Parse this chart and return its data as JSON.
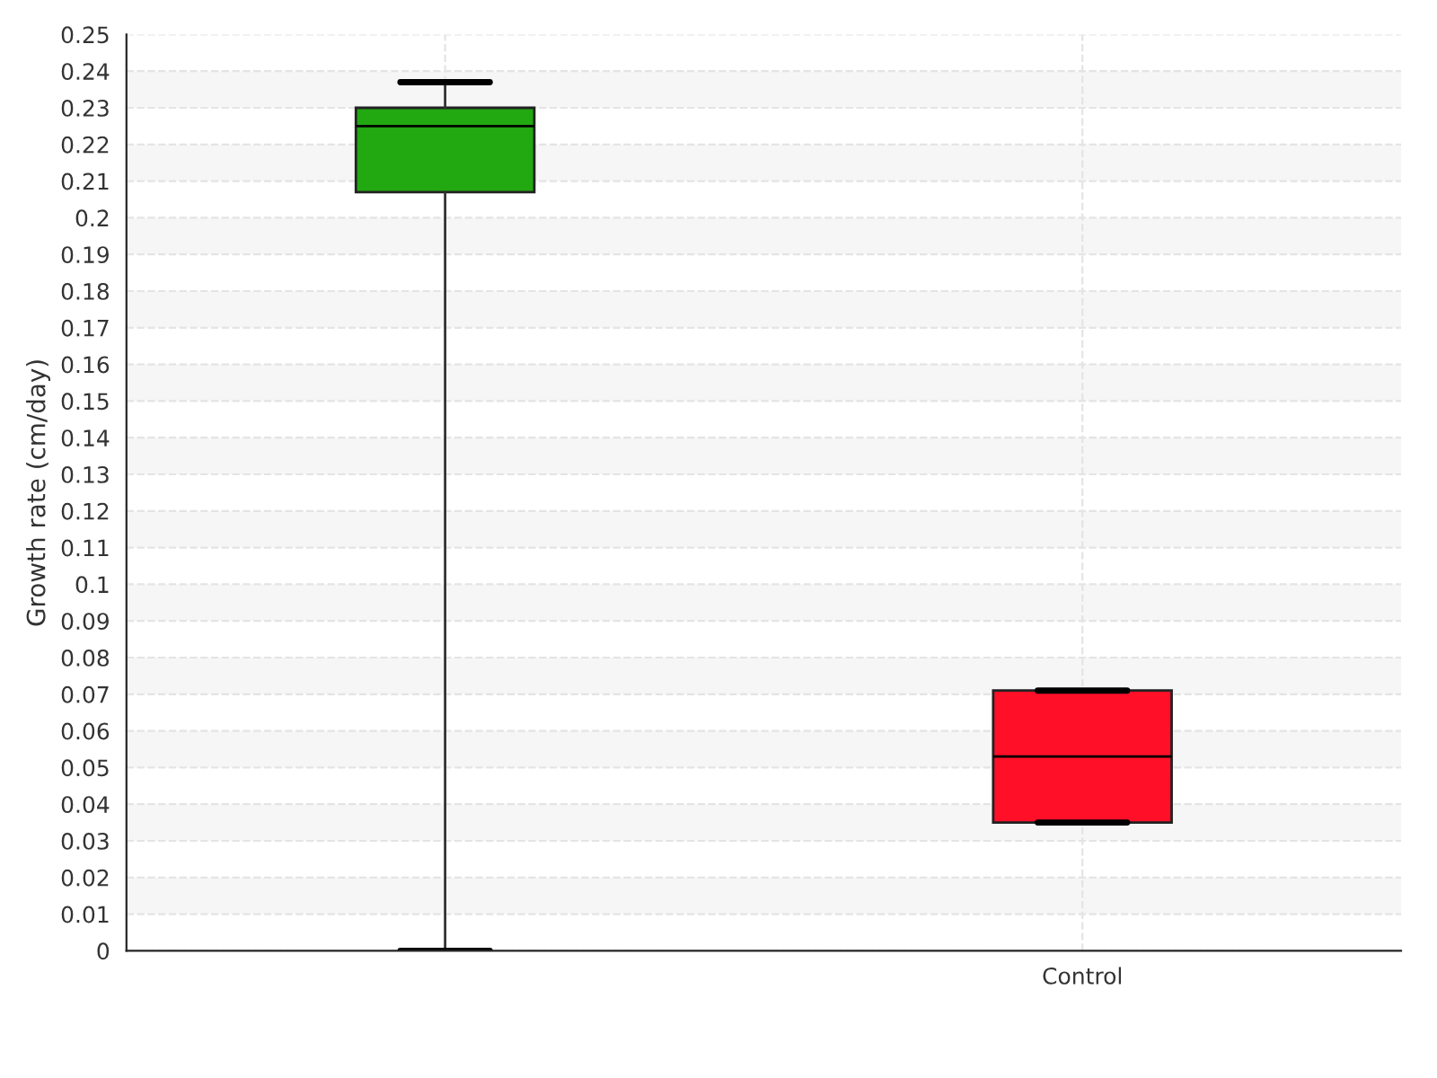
{
  "chart_data": {
    "type": "box",
    "ylabel": "Growth rate (cm/day)",
    "categories": [
      null,
      "Control"
    ],
    "boxes": [
      {
        "low": 0,
        "q1": 0.207,
        "median": 0.225,
        "q3": 0.23,
        "high": 0.237
      },
      {
        "low": 0.035,
        "q1": 0.035,
        "median": 0.053,
        "q3": 0.071,
        "high": 0.071
      }
    ],
    "colors": [
      "#22a811",
      "#ff0f28"
    ],
    "ylim": [
      0,
      0.25
    ],
    "yticks": [
      0,
      0.01,
      0.02,
      0.03,
      0.04,
      0.05,
      0.06,
      0.07,
      0.08,
      0.09,
      0.1,
      0.11,
      0.12,
      0.13,
      0.14,
      0.15,
      0.16,
      0.17,
      0.18,
      0.19,
      0.2,
      0.21,
      0.22,
      0.23,
      0.24,
      0.25
    ],
    "grid": true
  }
}
